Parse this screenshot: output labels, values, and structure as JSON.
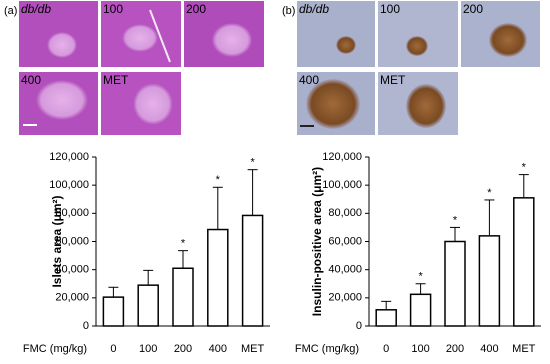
{
  "figure": {
    "panels": [
      {
        "label": "(a)",
        "images": [
          "db/db",
          "100",
          "200",
          "400",
          "MET"
        ]
      },
      {
        "label": "(b)",
        "images": [
          "db/db",
          "100",
          "200",
          "400",
          "MET"
        ]
      }
    ]
  },
  "chart_data": [
    {
      "type": "bar",
      "ylabel": "Islets area (μm²)",
      "xlabel": "FMC (mg/kg)",
      "categories": [
        "0",
        "100",
        "200",
        "400",
        "MET"
      ],
      "values": [
        20500,
        29000,
        41000,
        68500,
        78500
      ],
      "errors": [
        7000,
        10500,
        12500,
        30000,
        32500
      ],
      "significant": [
        false,
        false,
        true,
        true,
        true
      ],
      "significance_marker": "*",
      "color": "#ffffff",
      "ylim": [
        0,
        120000
      ],
      "yticks": [
        0,
        {
          "value": 20000,
          "label": "20,000"
        },
        {
          "value": 40000,
          "label": "40,000"
        },
        {
          "value": 60000,
          "label": "60,000"
        },
        {
          "value": 80000,
          "label": "80,000"
        },
        {
          "value": 100000,
          "label": "100,000"
        },
        {
          "value": 120000,
          "label": "120,000"
        }
      ]
    },
    {
      "type": "bar",
      "ylabel": "Insulin-positive area (μm²)",
      "xlabel": "FMC (mg/kg)",
      "categories": [
        "0",
        "100",
        "200",
        "400",
        "MET"
      ],
      "values": [
        11500,
        22500,
        60000,
        64000,
        91000
      ],
      "errors": [
        6000,
        7500,
        10000,
        25500,
        16500
      ],
      "significant": [
        false,
        true,
        true,
        true,
        true
      ],
      "significance_marker": "*",
      "color": "#ffffff",
      "ylim": [
        0,
        120000
      ],
      "yticks": [
        0,
        {
          "value": 20000,
          "label": "20,000"
        },
        {
          "value": 40000,
          "label": "40,000"
        },
        {
          "value": 60000,
          "label": "60,000"
        },
        {
          "value": 80000,
          "label": "80,000"
        },
        {
          "value": 100000,
          "label": "100,000"
        },
        {
          "value": 120000,
          "label": "120,000"
        }
      ]
    }
  ]
}
